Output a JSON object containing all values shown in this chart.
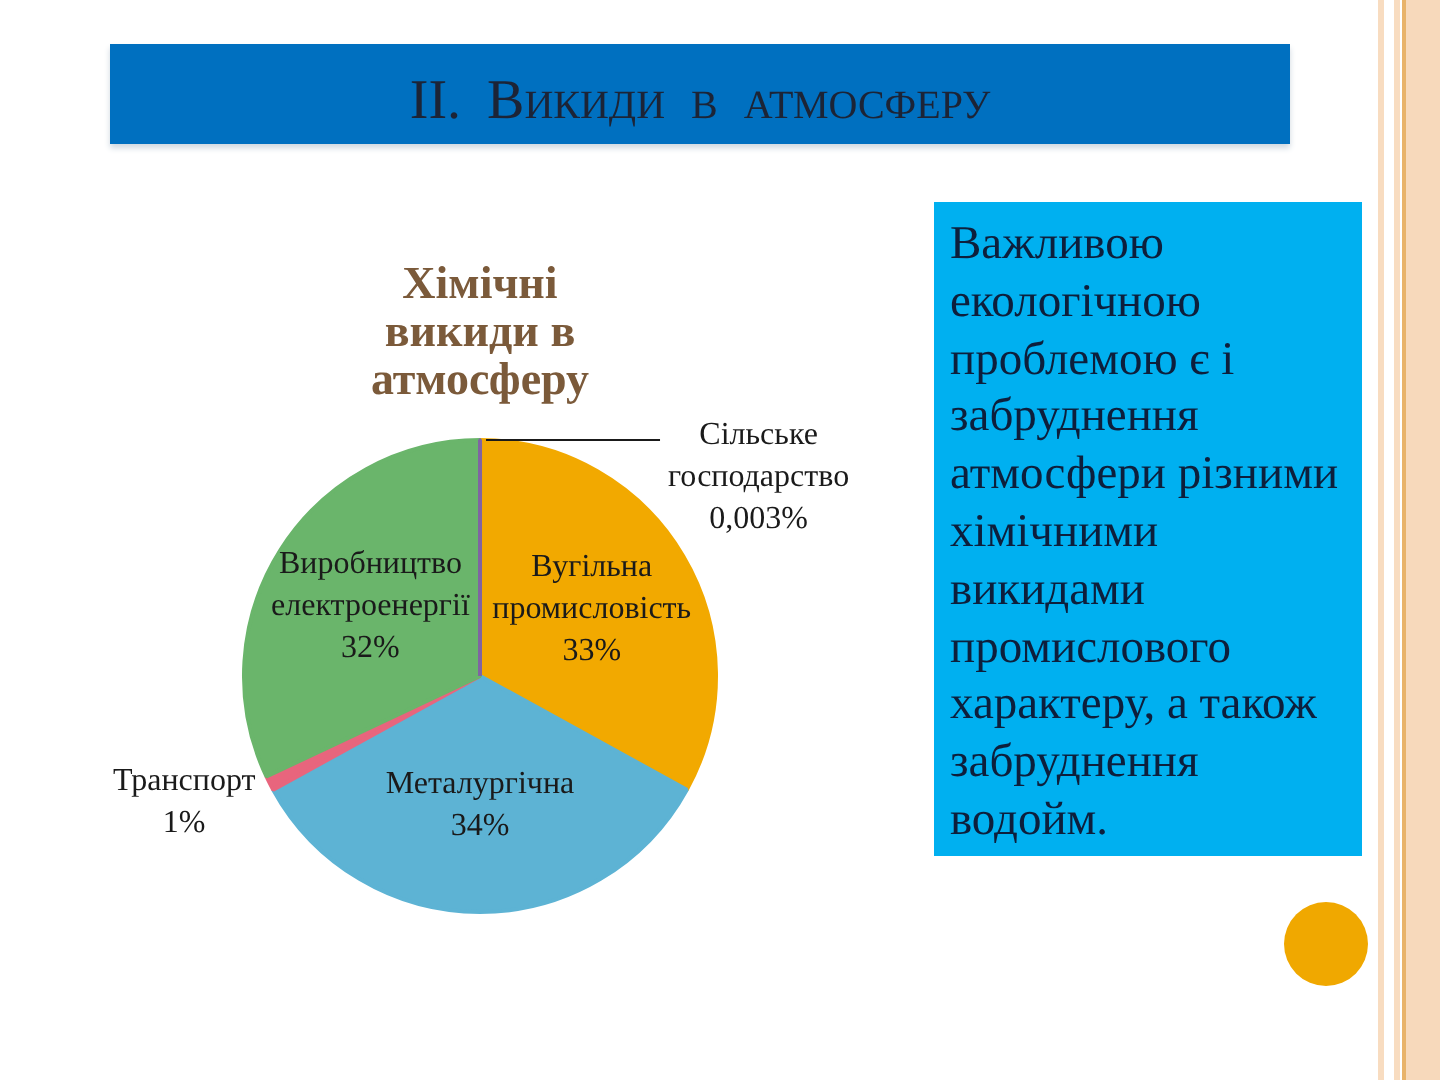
{
  "chart_data": {
    "type": "pie",
    "title": "II. Викиди в атмосферу",
    "subtitle": "Хімічні викиди в атмосферу",
    "categories": [
      "Сільське господарство",
      "Вугільна промисловість",
      "Металургічна",
      "Транспорт",
      "Виробництво електроенергії"
    ],
    "values": [
      0.003,
      33,
      34,
      1,
      32
    ],
    "value_labels": [
      "0,003%",
      "33%",
      "34%",
      "1%",
      "32%"
    ],
    "colors": [
      "#8064a2",
      "#f2a900",
      "#5db3d4",
      "#e8657d",
      "#6ab56b"
    ],
    "legend": false,
    "annotations": [
      "Важливою екологічною проблемою є і забруднення атмосфери різними хімічними викидами промислового характеру, а також забруднення водойм."
    ]
  }
}
